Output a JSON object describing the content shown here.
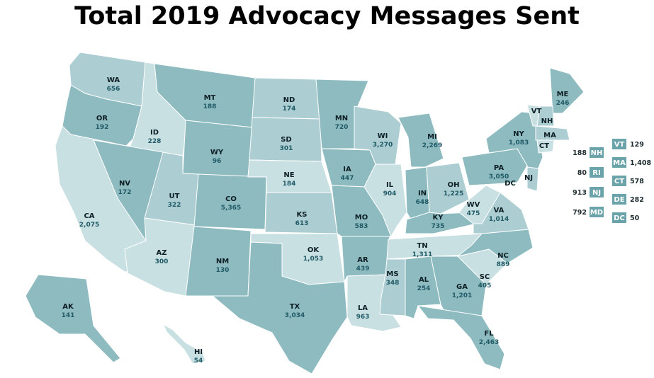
{
  "title": "Total 2019 Advocacy Messages Sent",
  "colors": {
    "level1": "#c9e0e3",
    "level2": "#acced2",
    "level3": "#8dbbc0",
    "box": "#6aa3aa",
    "label_code": "#0d1f24",
    "label_value": "#1f5a66"
  },
  "states": [
    {
      "code": "WA",
      "value": "656",
      "shade": 2
    },
    {
      "code": "OR",
      "value": "192",
      "shade": 3
    },
    {
      "code": "CA",
      "value": "2,075",
      "shade": 1
    },
    {
      "code": "ID",
      "value": "228",
      "shade": 1
    },
    {
      "code": "NV",
      "value": "172",
      "shade": 3
    },
    {
      "code": "MT",
      "value": "188",
      "shade": 3
    },
    {
      "code": "WY",
      "value": "96",
      "shade": 3
    },
    {
      "code": "UT",
      "value": "322",
      "shade": 2
    },
    {
      "code": "AZ",
      "value": "300",
      "shade": 1
    },
    {
      "code": "CO",
      "value": "5,365",
      "shade": 3
    },
    {
      "code": "NM",
      "value": "130",
      "shade": 3
    },
    {
      "code": "ND",
      "value": "174",
      "shade": 2
    },
    {
      "code": "SD",
      "value": "301",
      "shade": 2
    },
    {
      "code": "NE",
      "value": "184",
      "shade": 1
    },
    {
      "code": "KS",
      "value": "613",
      "shade": 2
    },
    {
      "code": "OK",
      "value": "1,053",
      "shade": 1
    },
    {
      "code": "TX",
      "value": "3,034",
      "shade": 3
    },
    {
      "code": "MN",
      "value": "720",
      "shade": 3
    },
    {
      "code": "IA",
      "value": "447",
      "shade": 3
    },
    {
      "code": "MO",
      "value": "583",
      "shade": 3
    },
    {
      "code": "AR",
      "value": "439",
      "shade": 3
    },
    {
      "code": "LA",
      "value": "963",
      "shade": 1
    },
    {
      "code": "WI",
      "value": "3,270",
      "shade": 2
    },
    {
      "code": "IL",
      "value": "904",
      "shade": 1
    },
    {
      "code": "MI",
      "value": "2,269",
      "shade": 3
    },
    {
      "code": "IN",
      "value": "648",
      "shade": 3
    },
    {
      "code": "OH",
      "value": "1,225",
      "shade": 2
    },
    {
      "code": "KY",
      "value": "735",
      "shade": 3
    },
    {
      "code": "TN",
      "value": "1,311",
      "shade": 1
    },
    {
      "code": "MS",
      "value": "348",
      "shade": 2
    },
    {
      "code": "AL",
      "value": "254",
      "shade": 3
    },
    {
      "code": "GA",
      "value": "1,201",
      "shade": 3
    },
    {
      "code": "FL",
      "value": "2,463",
      "shade": 3
    },
    {
      "code": "SC",
      "value": "405",
      "shade": 1
    },
    {
      "code": "NC",
      "value": "889",
      "shade": 3
    },
    {
      "code": "VA",
      "value": "1,014",
      "shade": 2
    },
    {
      "code": "WV",
      "value": "475",
      "shade": 1
    },
    {
      "code": "PA",
      "value": "3,050",
      "shade": 3
    },
    {
      "code": "NY",
      "value": "1,083",
      "shade": 3
    },
    {
      "code": "ME",
      "value": "246",
      "shade": 3
    },
    {
      "code": "AK",
      "value": "141",
      "shade": 3
    },
    {
      "code": "HI",
      "value": "54",
      "shade": 1
    }
  ],
  "map_codes": [
    "VT",
    "NH",
    "MA",
    "CT",
    "NJ",
    "DC"
  ],
  "small_states_left": [
    {
      "code": "NH",
      "value": "188"
    },
    {
      "code": "RI",
      "value": "80"
    },
    {
      "code": "NJ",
      "value": "913"
    },
    {
      "code": "MD",
      "value": "792"
    }
  ],
  "small_states_right": [
    {
      "code": "VT",
      "value": "129"
    },
    {
      "code": "MA",
      "value": "1,408"
    },
    {
      "code": "CT",
      "value": "578"
    },
    {
      "code": "DE",
      "value": "282"
    },
    {
      "code": "DC",
      "value": "50"
    }
  ]
}
